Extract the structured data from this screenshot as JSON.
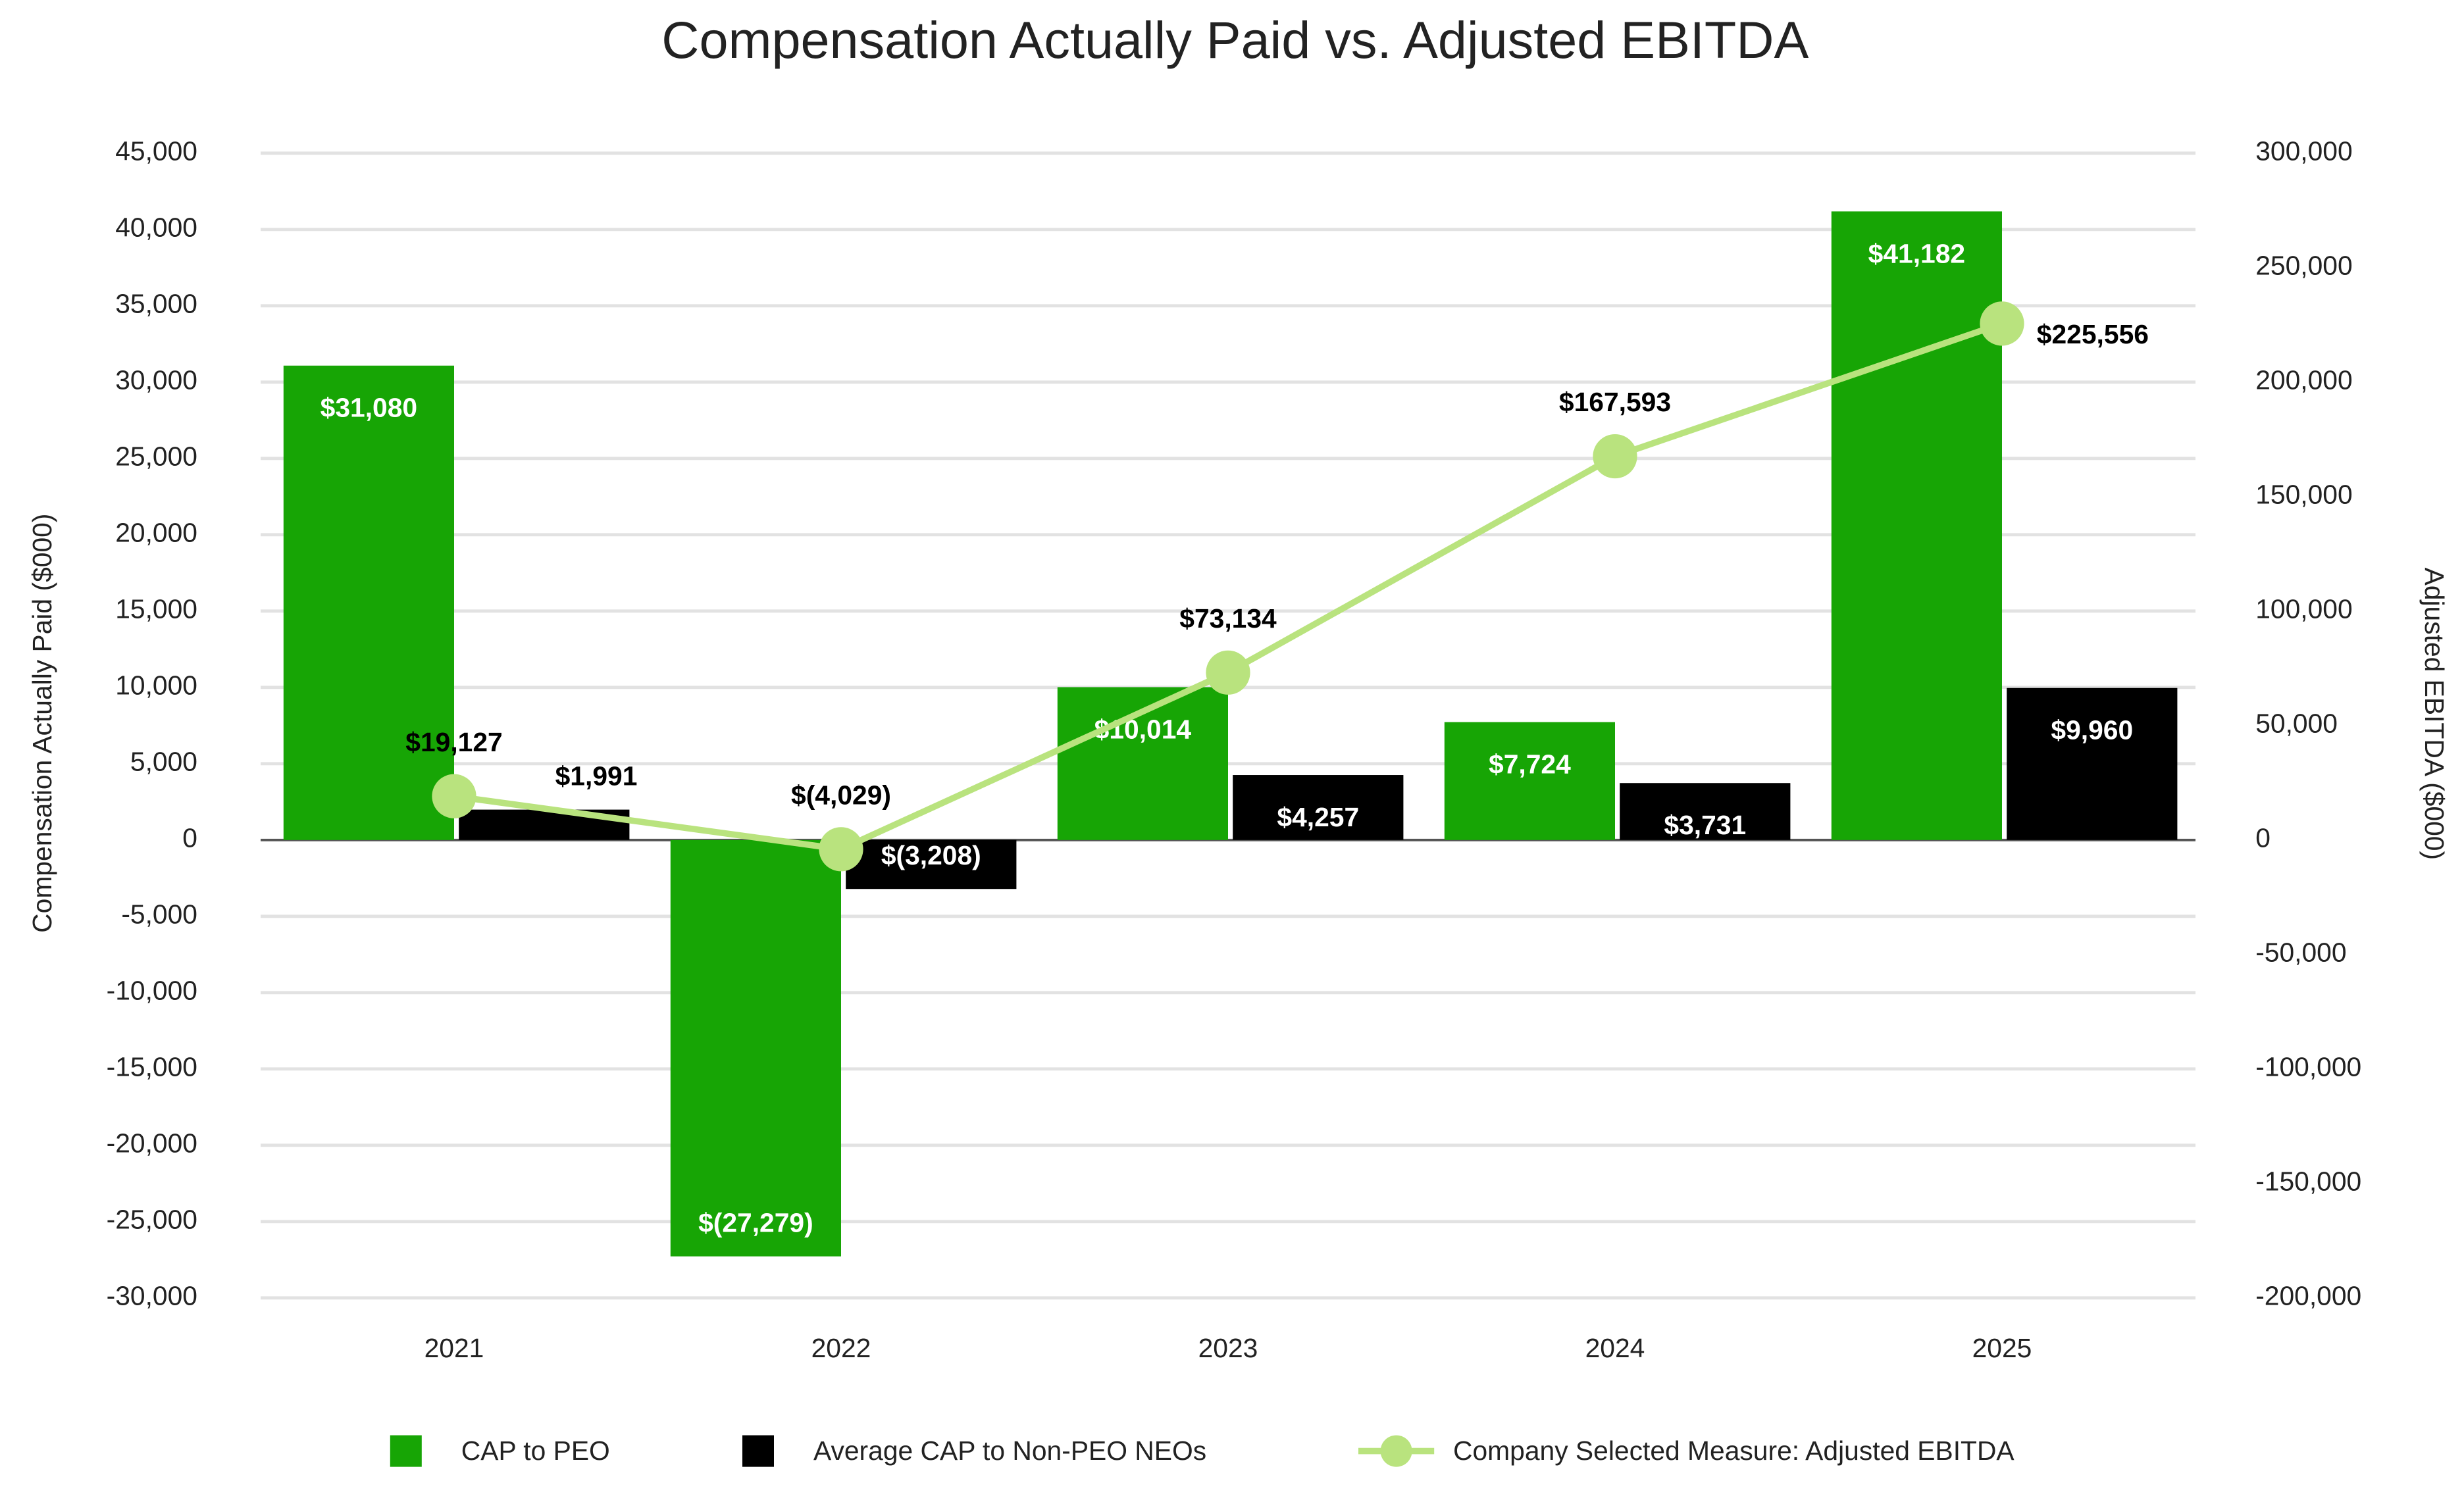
{
  "chart_data": {
    "type": "bar",
    "title": "Compensation Actually Paid vs. Adjusted EBITDA",
    "y_label": "Compensation Actually Paid ($000)",
    "y2_label": "Adjusted EBITDA ($000)",
    "categories": [
      "2021",
      "2022",
      "2023",
      "2024",
      "2025"
    ],
    "ylim": [
      -30000,
      45000
    ],
    "yticks": [
      {
        "value": 45000,
        "label": "45,000"
      },
      {
        "value": 40000,
        "label": "40,000"
      },
      {
        "value": 35000,
        "label": "35,000"
      },
      {
        "value": 30000,
        "label": "30,000"
      },
      {
        "value": 25000,
        "label": "25,000"
      },
      {
        "value": 20000,
        "label": "20,000"
      },
      {
        "value": 15000,
        "label": "15,000"
      },
      {
        "value": 10000,
        "label": "10,000"
      },
      {
        "value": 5000,
        "label": "5,000"
      },
      0,
      {
        "value": -5000,
        "label": "-5,000"
      },
      {
        "value": -10000,
        "label": "-10,000"
      },
      {
        "value": -15000,
        "label": "-15,000"
      },
      {
        "value": -20000,
        "label": "-20,000"
      },
      {
        "value": -25000,
        "label": "-25,000"
      },
      {
        "value": -30000,
        "label": "-30,000"
      }
    ],
    "y2lim": [
      -200000,
      300000
    ],
    "y2ticks": [
      {
        "value": 300000,
        "label": "300,000"
      },
      {
        "value": 250000,
        "label": "250,000"
      },
      {
        "value": 200000,
        "label": "200,000"
      },
      {
        "value": 150000,
        "label": "150,000"
      },
      {
        "value": 100000,
        "label": "100,000"
      },
      {
        "value": 50000,
        "label": "50,000"
      },
      0,
      {
        "value": -50000,
        "label": "-50,000"
      },
      {
        "value": -100000,
        "label": "-100,000"
      },
      {
        "value": -150000,
        "label": "-150,000"
      },
      {
        "value": -200000,
        "label": "-200,000"
      }
    ],
    "grid": true,
    "series": [
      {
        "name": "CAP to PEO",
        "type": "bar",
        "color": "#17a505",
        "values": [
          31080,
          -27279,
          10014,
          7724,
          41182
        ],
        "value_labels": [
          "$31,080",
          "$(27,279)",
          "$10,014",
          "$7,724",
          "$41,182"
        ]
      },
      {
        "name": "Average CAP to Non-PEO NEOs",
        "type": "bar",
        "color": "#000000",
        "values": [
          1991,
          -3208,
          4257,
          3731,
          9960
        ],
        "value_labels": [
          "$1,991",
          "$(3,208)",
          "$4,257",
          "$3,731",
          "$9,960"
        ]
      },
      {
        "name": "Company Selected Measure: Adjusted EBITDA",
        "type": "line",
        "axis": "y2",
        "color": "#b9e37e",
        "values": [
          19127,
          -4029,
          73134,
          167593,
          225556
        ],
        "value_labels": [
          "$19,127",
          "$(4,029)",
          "$73,134",
          "$167,593",
          "$225,556"
        ]
      }
    ]
  }
}
